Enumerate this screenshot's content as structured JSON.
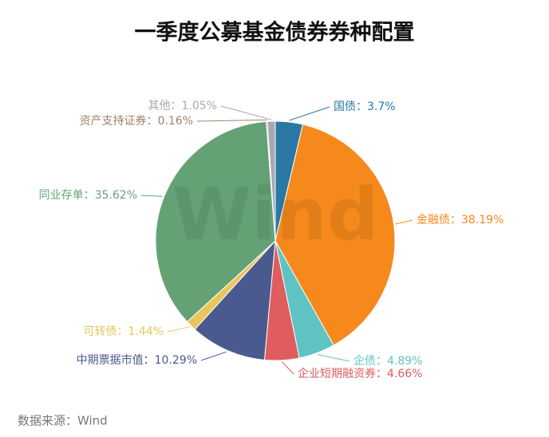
{
  "chart_data": {
    "type": "pie",
    "title": "一季度公募基金债券券种配置",
    "labels": [
      "国债：3.7%",
      "金融债：38.19%",
      "企债：4.89%",
      "企业短期融资券：4.66%",
      "中期票据市值：10.29%",
      "可转债：1.44%",
      "同业存单：35.62%",
      "资产支持证券：0.16%",
      "其他：1.05%"
    ],
    "values": [
      3.7,
      38.19,
      4.89,
      4.66,
      10.29,
      1.44,
      35.62,
      0.16,
      1.05
    ],
    "colors": [
      "#2a78a6",
      "#f5891b",
      "#5fc3c3",
      "#e05d5f",
      "#4a5a8e",
      "#e8c75a",
      "#64a276",
      "#a0826a",
      "#a7a9b0"
    ],
    "watermark": "Wind",
    "source": "数据来源：Wind"
  }
}
